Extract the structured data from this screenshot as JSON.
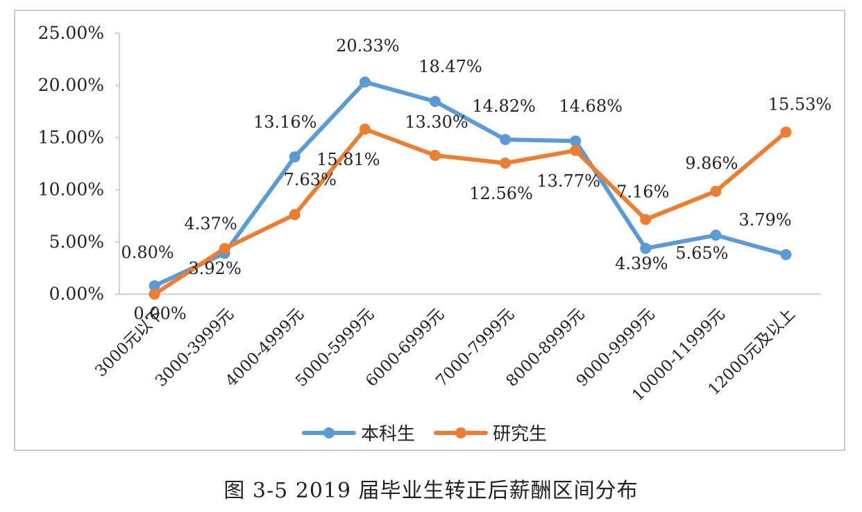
{
  "chart_data": {
    "type": "line",
    "categories": [
      "3000元以下",
      "3000-3999元",
      "4000-4999元",
      "5000-5999元",
      "6000-6999元",
      "7000-7999元",
      "8000-8999元",
      "9000-9999元",
      "10000-11999元",
      "12000元及以上"
    ],
    "series": [
      {
        "name": "本科生",
        "color": "#5b9bd5",
        "values": [
          0.8,
          3.92,
          13.16,
          20.33,
          18.47,
          14.82,
          14.68,
          4.39,
          5.65,
          3.79
        ],
        "labels": [
          "0.80%",
          "3.92%",
          "13.16%",
          "20.33%",
          "18.47%",
          "14.82%",
          "14.68%",
          "4.39%",
          "5.65%",
          "3.79%"
        ]
      },
      {
        "name": "研究生",
        "color": "#ed7d31",
        "values": [
          0.0,
          4.37,
          7.63,
          15.81,
          13.3,
          12.56,
          13.77,
          7.16,
          9.86,
          15.53
        ],
        "labels": [
          "0.00%",
          "4.37%",
          "7.63%",
          "15.81%",
          "13.30%",
          "12.56%",
          "13.77%",
          "7.16%",
          "9.86%",
          "15.53%"
        ]
      }
    ],
    "yticks": [
      "0.00%",
      "5.00%",
      "10.00%",
      "15.00%",
      "20.00%",
      "25.00%"
    ],
    "ylim": [
      0,
      25
    ],
    "legend_position": "bottom",
    "grid": false
  },
  "caption": "图 3-5   2019 届毕业生转正后薪酬区间分布"
}
